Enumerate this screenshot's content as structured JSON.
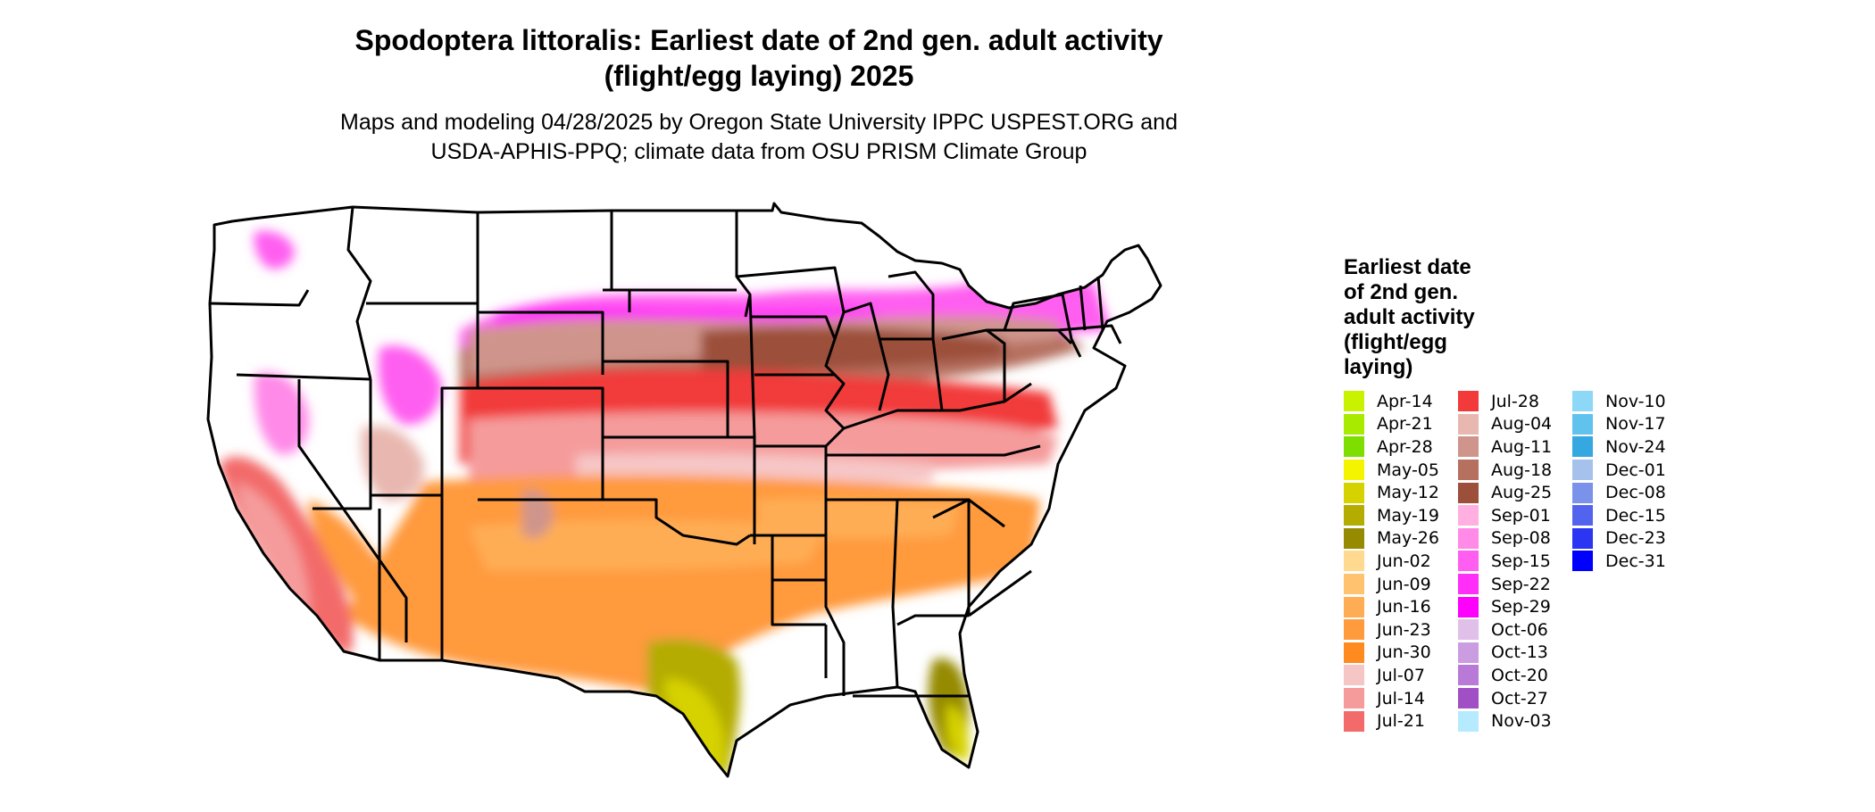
{
  "title": {
    "line1": "Spodoptera littoralis: Earliest date of 2nd gen. adult activity",
    "line2": "(flight/egg laying) 2025"
  },
  "subtitle": {
    "line1": "Maps and modeling 04/28/2025 by Oregon State University IPPC USPEST.ORG and",
    "line2": "USDA-APHIS-PPQ; climate data from OSU PRISM Climate Group"
  },
  "legend": {
    "title_lines": [
      "Earliest date",
      "of 2nd gen.",
      "adult activity",
      "(flight/egg",
      "laying)"
    ],
    "columns": [
      [
        {
          "label": "Apr-14",
          "color": "#c8f200"
        },
        {
          "label": "Apr-21",
          "color": "#a8ea00"
        },
        {
          "label": "Apr-28",
          "color": "#7ede00"
        },
        {
          "label": "May-05",
          "color": "#f4f400"
        },
        {
          "label": "May-12",
          "color": "#d6d200"
        },
        {
          "label": "May-19",
          "color": "#b4ac00"
        },
        {
          "label": "May-26",
          "color": "#958a00"
        },
        {
          "label": "Jun-02",
          "color": "#ffd98f"
        },
        {
          "label": "Jun-09",
          "color": "#ffc370"
        },
        {
          "label": "Jun-16",
          "color": "#ffad55"
        },
        {
          "label": "Jun-23",
          "color": "#ff9a3d"
        },
        {
          "label": "Jun-30",
          "color": "#ff8a20"
        },
        {
          "label": "Jul-07",
          "color": "#f6c6c6"
        },
        {
          "label": "Jul-14",
          "color": "#f59b9b"
        },
        {
          "label": "Jul-21",
          "color": "#f36a6a"
        }
      ],
      [
        {
          "label": "Jul-28",
          "color": "#f23a3a"
        },
        {
          "label": "Aug-04",
          "color": "#e8b8b0"
        },
        {
          "label": "Aug-11",
          "color": "#cf958c"
        },
        {
          "label": "Aug-18",
          "color": "#b5705f"
        },
        {
          "label": "Aug-25",
          "color": "#9c4f3a"
        },
        {
          "label": "Sep-01",
          "color": "#ffb0e0"
        },
        {
          "label": "Sep-08",
          "color": "#ff8ae8"
        },
        {
          "label": "Sep-15",
          "color": "#ff5ef0"
        },
        {
          "label": "Sep-22",
          "color": "#ff2ef8"
        },
        {
          "label": "Sep-29",
          "color": "#ff00ff"
        },
        {
          "label": "Oct-06",
          "color": "#e0c0e8"
        },
        {
          "label": "Oct-13",
          "color": "#cc9ce0"
        },
        {
          "label": "Oct-20",
          "color": "#b87ad6"
        },
        {
          "label": "Oct-27",
          "color": "#a050c4"
        },
        {
          "label": "Nov-03",
          "color": "#b6eaff"
        }
      ],
      [
        {
          "label": "Nov-10",
          "color": "#8cd8f6"
        },
        {
          "label": "Nov-17",
          "color": "#62c2ee"
        },
        {
          "label": "Nov-24",
          "color": "#35a8e2"
        },
        {
          "label": "Dec-01",
          "color": "#a6c2ec"
        },
        {
          "label": "Dec-08",
          "color": "#7a92ea"
        },
        {
          "label": "Dec-15",
          "color": "#5264ee"
        },
        {
          "label": "Dec-23",
          "color": "#2a36f2"
        },
        {
          "label": "Dec-31",
          "color": "#0000ff"
        }
      ]
    ]
  }
}
